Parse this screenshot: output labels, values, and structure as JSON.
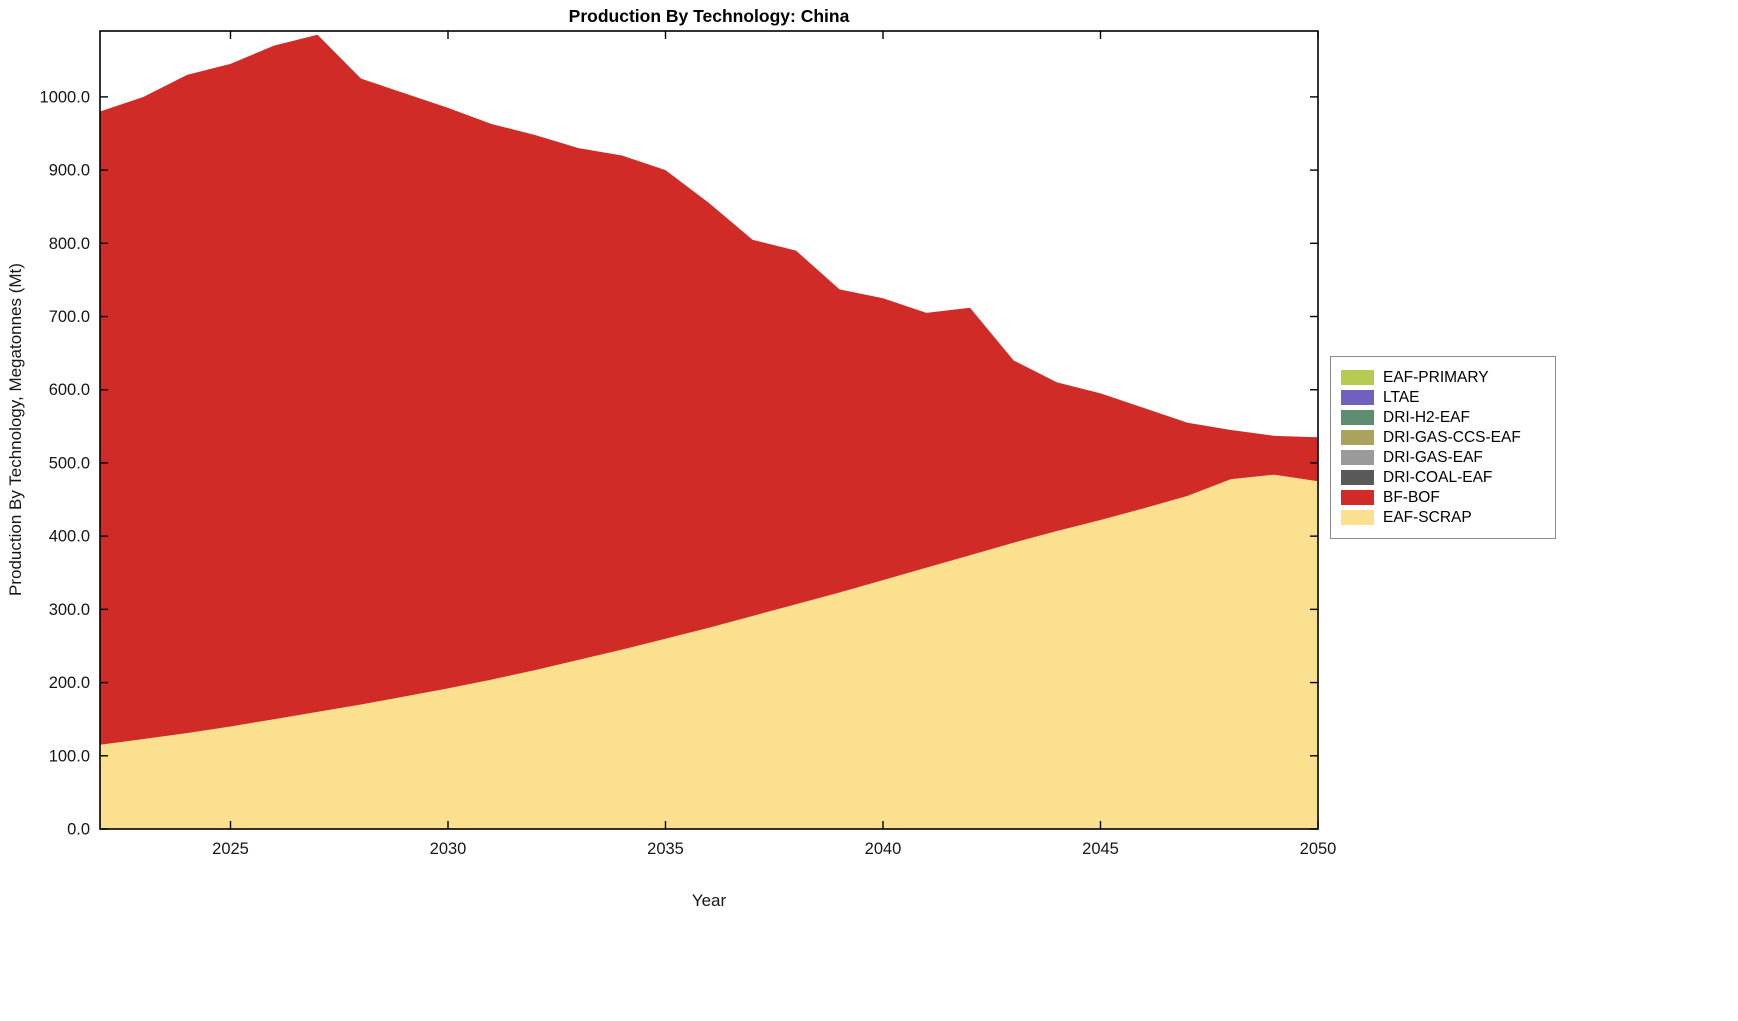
{
  "page": {
    "background": "#ffffff"
  },
  "chart_data": {
    "type": "area",
    "stacked": true,
    "title": "Production By Technology: China",
    "xlabel": "Year",
    "ylabel": "Production By Technology, Megatonnes (Mt)",
    "grid": false,
    "legend_position": "right-outside",
    "x": [
      2022,
      2023,
      2024,
      2025,
      2026,
      2027,
      2028,
      2029,
      2030,
      2031,
      2032,
      2033,
      2034,
      2035,
      2036,
      2037,
      2038,
      2039,
      2040,
      2041,
      2042,
      2043,
      2044,
      2045,
      2046,
      2047,
      2048,
      2049,
      2050
    ],
    "xlim": [
      2022,
      2050
    ],
    "ylim": [
      0,
      1090
    ],
    "xticks": [
      2025,
      2030,
      2035,
      2040,
      2045,
      2050
    ],
    "yticks": [
      0,
      100,
      200,
      300,
      400,
      500,
      600,
      700,
      800,
      900,
      1000
    ],
    "series": [
      {
        "name": "EAF-SCRAP",
        "color": "#fbe18f",
        "values": [
          115,
          123,
          131,
          140,
          150,
          160,
          170,
          181,
          192,
          204,
          217,
          231,
          245,
          260,
          275,
          291,
          307,
          323,
          340,
          357,
          374,
          391,
          407,
          422,
          438,
          455,
          478,
          484,
          475
        ]
      },
      {
        "name": "BF-BOF",
        "color": "#d12b27",
        "values": [
          865,
          877,
          899,
          905,
          920,
          925,
          855,
          824,
          793,
          759,
          731,
          699,
          675,
          640,
          580,
          514,
          483,
          414,
          385,
          348,
          338,
          249,
          203,
          173,
          137,
          100,
          67,
          53,
          60
        ]
      },
      {
        "name": "DRI-COAL-EAF",
        "color": "#595959",
        "values": [
          0,
          0,
          0,
          0,
          0,
          0,
          0,
          0,
          0,
          0,
          0,
          0,
          0,
          0,
          0,
          0,
          0,
          0,
          0,
          0,
          0,
          0,
          0,
          0,
          0,
          0,
          0,
          0,
          0
        ]
      },
      {
        "name": "DRI-GAS-EAF",
        "color": "#9a9a9a",
        "values": [
          0,
          0,
          0,
          0,
          0,
          0,
          0,
          0,
          0,
          0,
          0,
          0,
          0,
          0,
          0,
          0,
          0,
          0,
          0,
          0,
          0,
          0,
          0,
          0,
          0,
          0,
          0,
          0,
          0
        ]
      },
      {
        "name": "DRI-GAS-CCS-EAF",
        "color": "#aaa35e",
        "values": [
          0,
          0,
          0,
          0,
          0,
          0,
          0,
          0,
          0,
          0,
          0,
          0,
          0,
          0,
          0,
          0,
          0,
          0,
          0,
          0,
          0,
          0,
          0,
          0,
          0,
          0,
          0,
          0,
          0
        ]
      },
      {
        "name": "DRI-H2-EAF",
        "color": "#5e8d71",
        "values": [
          0,
          0,
          0,
          0,
          0,
          0,
          0,
          0,
          0,
          0,
          0,
          0,
          0,
          0,
          0,
          0,
          0,
          0,
          0,
          0,
          0,
          0,
          0,
          0,
          0,
          0,
          0,
          0,
          0
        ]
      },
      {
        "name": "LTAE",
        "color": "#6f62bf",
        "values": [
          0,
          0,
          0,
          0,
          0,
          0,
          0,
          0,
          0,
          0,
          0,
          0,
          0,
          0,
          0,
          0,
          0,
          0,
          0,
          0,
          0,
          0,
          0,
          0,
          0,
          0,
          0,
          0,
          0
        ]
      },
      {
        "name": "EAF-PRIMARY",
        "color": "#b7ca52",
        "values": [
          0,
          0,
          0,
          0,
          0,
          0,
          0,
          0,
          0,
          0,
          0,
          0,
          0,
          0,
          0,
          0,
          0,
          0,
          0,
          0,
          0,
          0,
          0,
          0,
          0,
          0,
          0,
          0,
          0
        ]
      }
    ],
    "legend_order": [
      "EAF-PRIMARY",
      "LTAE",
      "DRI-H2-EAF",
      "DRI-GAS-CCS-EAF",
      "DRI-GAS-EAF",
      "DRI-COAL-EAF",
      "BF-BOF",
      "EAF-SCRAP"
    ]
  }
}
